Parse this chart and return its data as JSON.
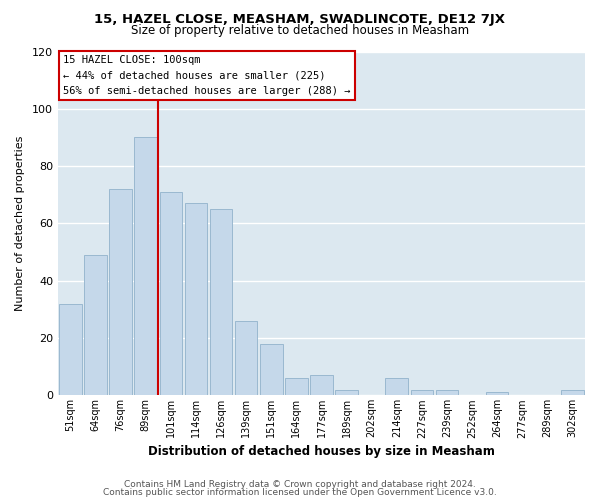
{
  "title": "15, HAZEL CLOSE, MEASHAM, SWADLINCOTE, DE12 7JX",
  "subtitle": "Size of property relative to detached houses in Measham",
  "xlabel": "Distribution of detached houses by size in Measham",
  "ylabel": "Number of detached properties",
  "bar_color": "#c5d8ea",
  "bar_edge_color": "#9ab8d0",
  "highlight_line_color": "#cc0000",
  "plot_bg_color": "#dce8f0",
  "fig_bg_color": "#ffffff",
  "grid_color": "#ffffff",
  "categories": [
    "51sqm",
    "64sqm",
    "76sqm",
    "89sqm",
    "101sqm",
    "114sqm",
    "126sqm",
    "139sqm",
    "151sqm",
    "164sqm",
    "177sqm",
    "189sqm",
    "202sqm",
    "214sqm",
    "227sqm",
    "239sqm",
    "252sqm",
    "264sqm",
    "277sqm",
    "289sqm",
    "302sqm"
  ],
  "values": [
    32,
    49,
    72,
    90,
    71,
    67,
    65,
    26,
    18,
    6,
    7,
    2,
    0,
    6,
    2,
    2,
    0,
    1,
    0,
    0,
    2
  ],
  "highlight_index": 4,
  "annotation_title": "15 HAZEL CLOSE: 100sqm",
  "annotation_line1": "← 44% of detached houses are smaller (225)",
  "annotation_line2": "56% of semi-detached houses are larger (288) →",
  "ylim": [
    0,
    120
  ],
  "yticks": [
    0,
    20,
    40,
    60,
    80,
    100,
    120
  ],
  "footer1": "Contains HM Land Registry data © Crown copyright and database right 2024.",
  "footer2": "Contains public sector information licensed under the Open Government Licence v3.0.",
  "ann_box_color": "#ffffff",
  "ann_edge_color": "#cc0000"
}
